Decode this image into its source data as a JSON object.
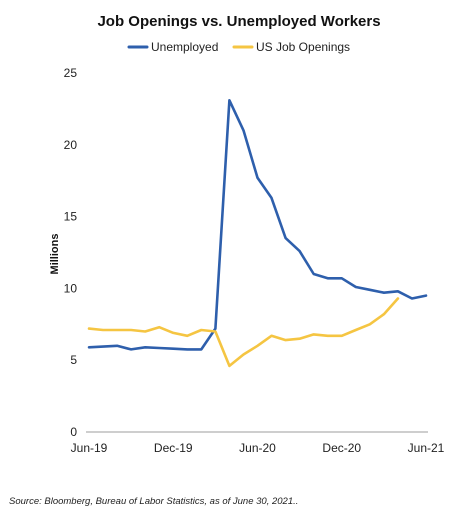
{
  "chart_data": {
    "type": "line",
    "title": "Job Openings vs. Unemployed Workers",
    "ylabel": "Millions",
    "xlabel": "",
    "ylim": [
      0,
      25
    ],
    "yticks": [
      0,
      5,
      10,
      15,
      20,
      25
    ],
    "x_tick_labels": [
      "Jun-19",
      "Dec-19",
      "Jun-20",
      "Dec-20",
      "Jun-21"
    ],
    "x_range_months": [
      "2019-06",
      "2021-06"
    ],
    "x": [
      "2019-06",
      "2019-07",
      "2019-08",
      "2019-09",
      "2019-10",
      "2019-11",
      "2019-12",
      "2020-01",
      "2020-02",
      "2020-03",
      "2020-04",
      "2020-05",
      "2020-06",
      "2020-07",
      "2020-08",
      "2020-09",
      "2020-10",
      "2020-11",
      "2020-12",
      "2021-01",
      "2021-02",
      "2021-03",
      "2021-04",
      "2021-05",
      "2021-06"
    ],
    "series": [
      {
        "name": "Unemployed",
        "color": "#2E5FAC",
        "values": [
          5.9,
          5.95,
          6.0,
          5.75,
          5.9,
          5.85,
          5.8,
          5.75,
          5.75,
          7.2,
          23.1,
          21.0,
          17.7,
          16.3,
          13.5,
          12.6,
          11.0,
          10.7,
          10.7,
          10.1,
          9.9,
          9.7,
          9.8,
          9.3,
          9.5
        ]
      },
      {
        "name": "US Job Openings",
        "color": "#F5C542",
        "values": [
          7.2,
          7.1,
          7.1,
          7.1,
          7.0,
          7.3,
          6.9,
          6.7,
          7.1,
          7.0,
          4.6,
          5.4,
          6.0,
          6.7,
          6.4,
          6.5,
          6.8,
          6.7,
          6.7,
          7.1,
          7.5,
          8.2,
          9.3,
          null,
          null
        ]
      }
    ],
    "grid": false,
    "legend_position": "top-center",
    "source": "Source: Bloomberg, Bureau of Labor Statistics, as of June 30, 2021.."
  }
}
